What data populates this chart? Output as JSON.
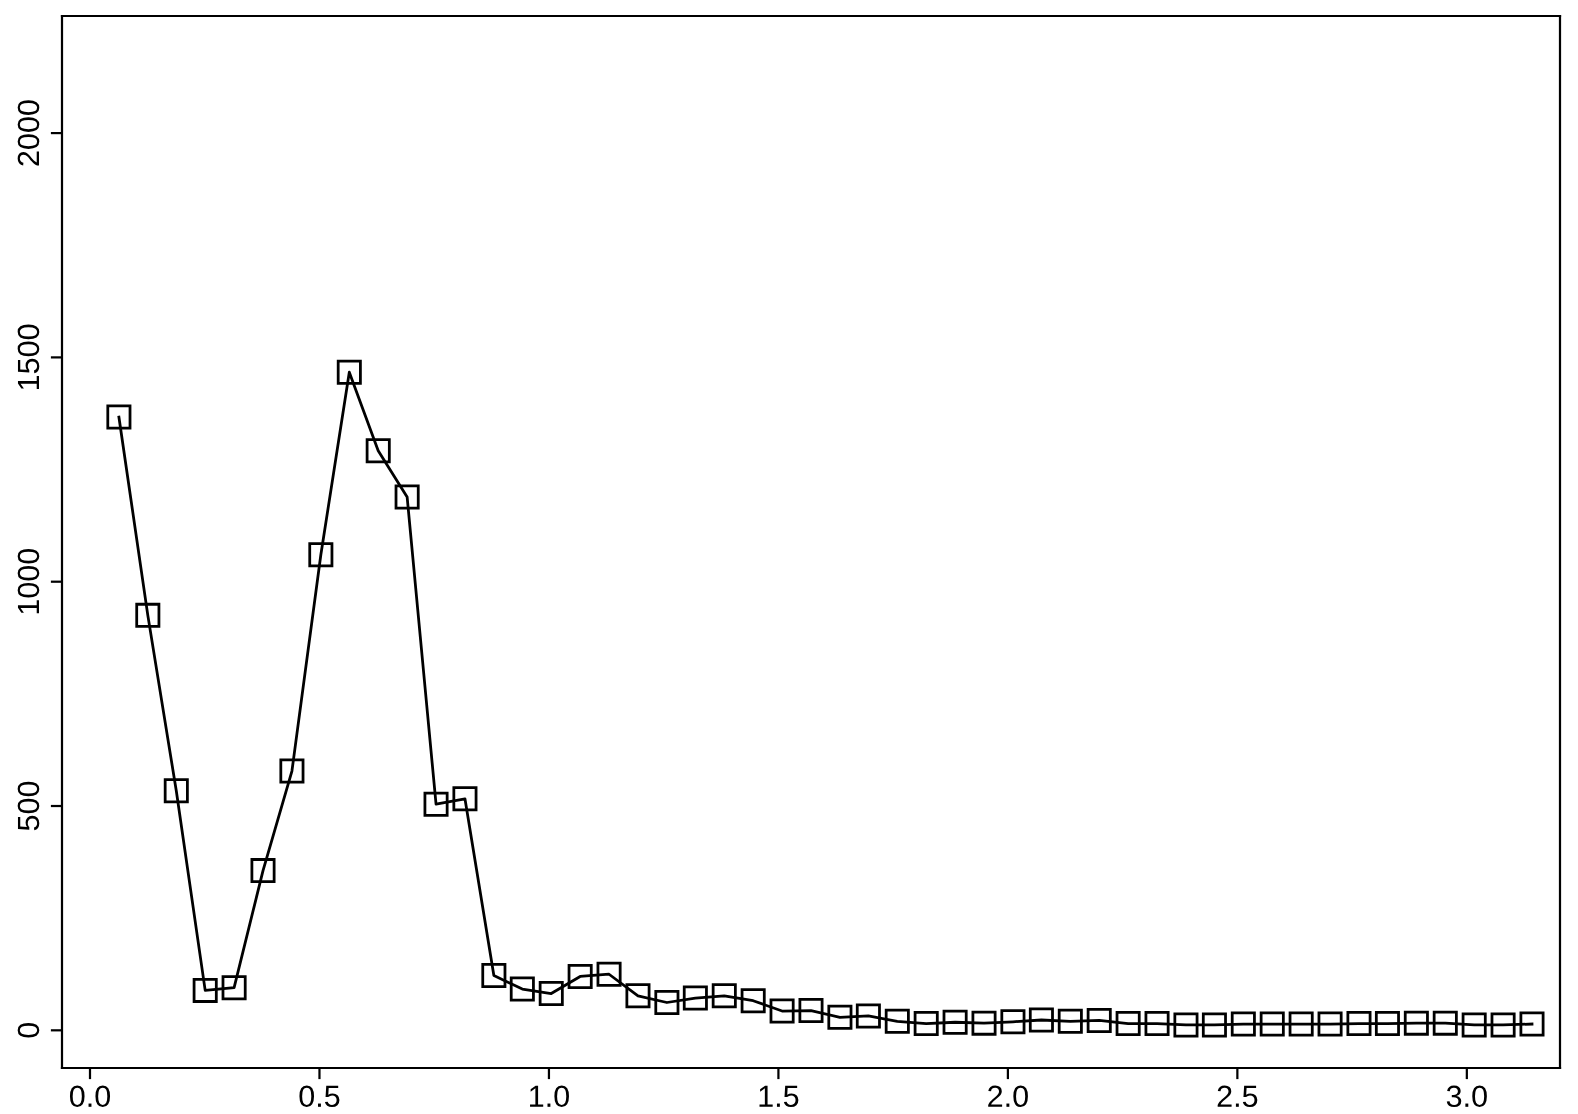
{
  "chart_data": {
    "type": "line",
    "marker": "square",
    "line_style": "solid",
    "grid": false,
    "legend": false,
    "x": [
      0.063,
      0.126,
      0.188,
      0.251,
      0.314,
      0.377,
      0.44,
      0.503,
      0.565,
      0.628,
      0.691,
      0.754,
      0.817,
      0.88,
      0.942,
      1.005,
      1.068,
      1.131,
      1.194,
      1.257,
      1.319,
      1.382,
      1.445,
      1.508,
      1.571,
      1.634,
      1.696,
      1.759,
      1.822,
      1.885,
      1.948,
      2.011,
      2.073,
      2.136,
      2.199,
      2.262,
      2.325,
      2.388,
      2.45,
      2.513,
      2.576,
      2.639,
      2.702,
      2.765,
      2.827,
      2.89,
      2.953,
      3.016,
      3.079,
      3.142
    ],
    "series": [
      {
        "color": "#000000",
        "values": [
          1367,
          925,
          534,
          89,
          95,
          356,
          578,
          1060,
          1467,
          1292,
          1189,
          504,
          516,
          122,
          92,
          82,
          120,
          125,
          77,
          62,
          72,
          77,
          66,
          43,
          44,
          29,
          32,
          20,
          15,
          18,
          16,
          19,
          23,
          20,
          22,
          15,
          15,
          12,
          12,
          14,
          14,
          14,
          14,
          15,
          15,
          16,
          16,
          12,
          12,
          14
        ]
      }
    ],
    "xlim": [
      -0.061,
      3.203
    ],
    "ylim": [
      -84,
      2261
    ],
    "xticks": [
      {
        "value": 0,
        "label": "0.0"
      },
      0.5,
      {
        "value": 1,
        "label": "1.0"
      },
      1.5,
      {
        "value": 2,
        "label": "2.0"
      },
      2.5,
      {
        "value": 3,
        "label": "3.0"
      }
    ],
    "yticks": [
      0,
      500,
      1000,
      1500,
      2000
    ]
  }
}
